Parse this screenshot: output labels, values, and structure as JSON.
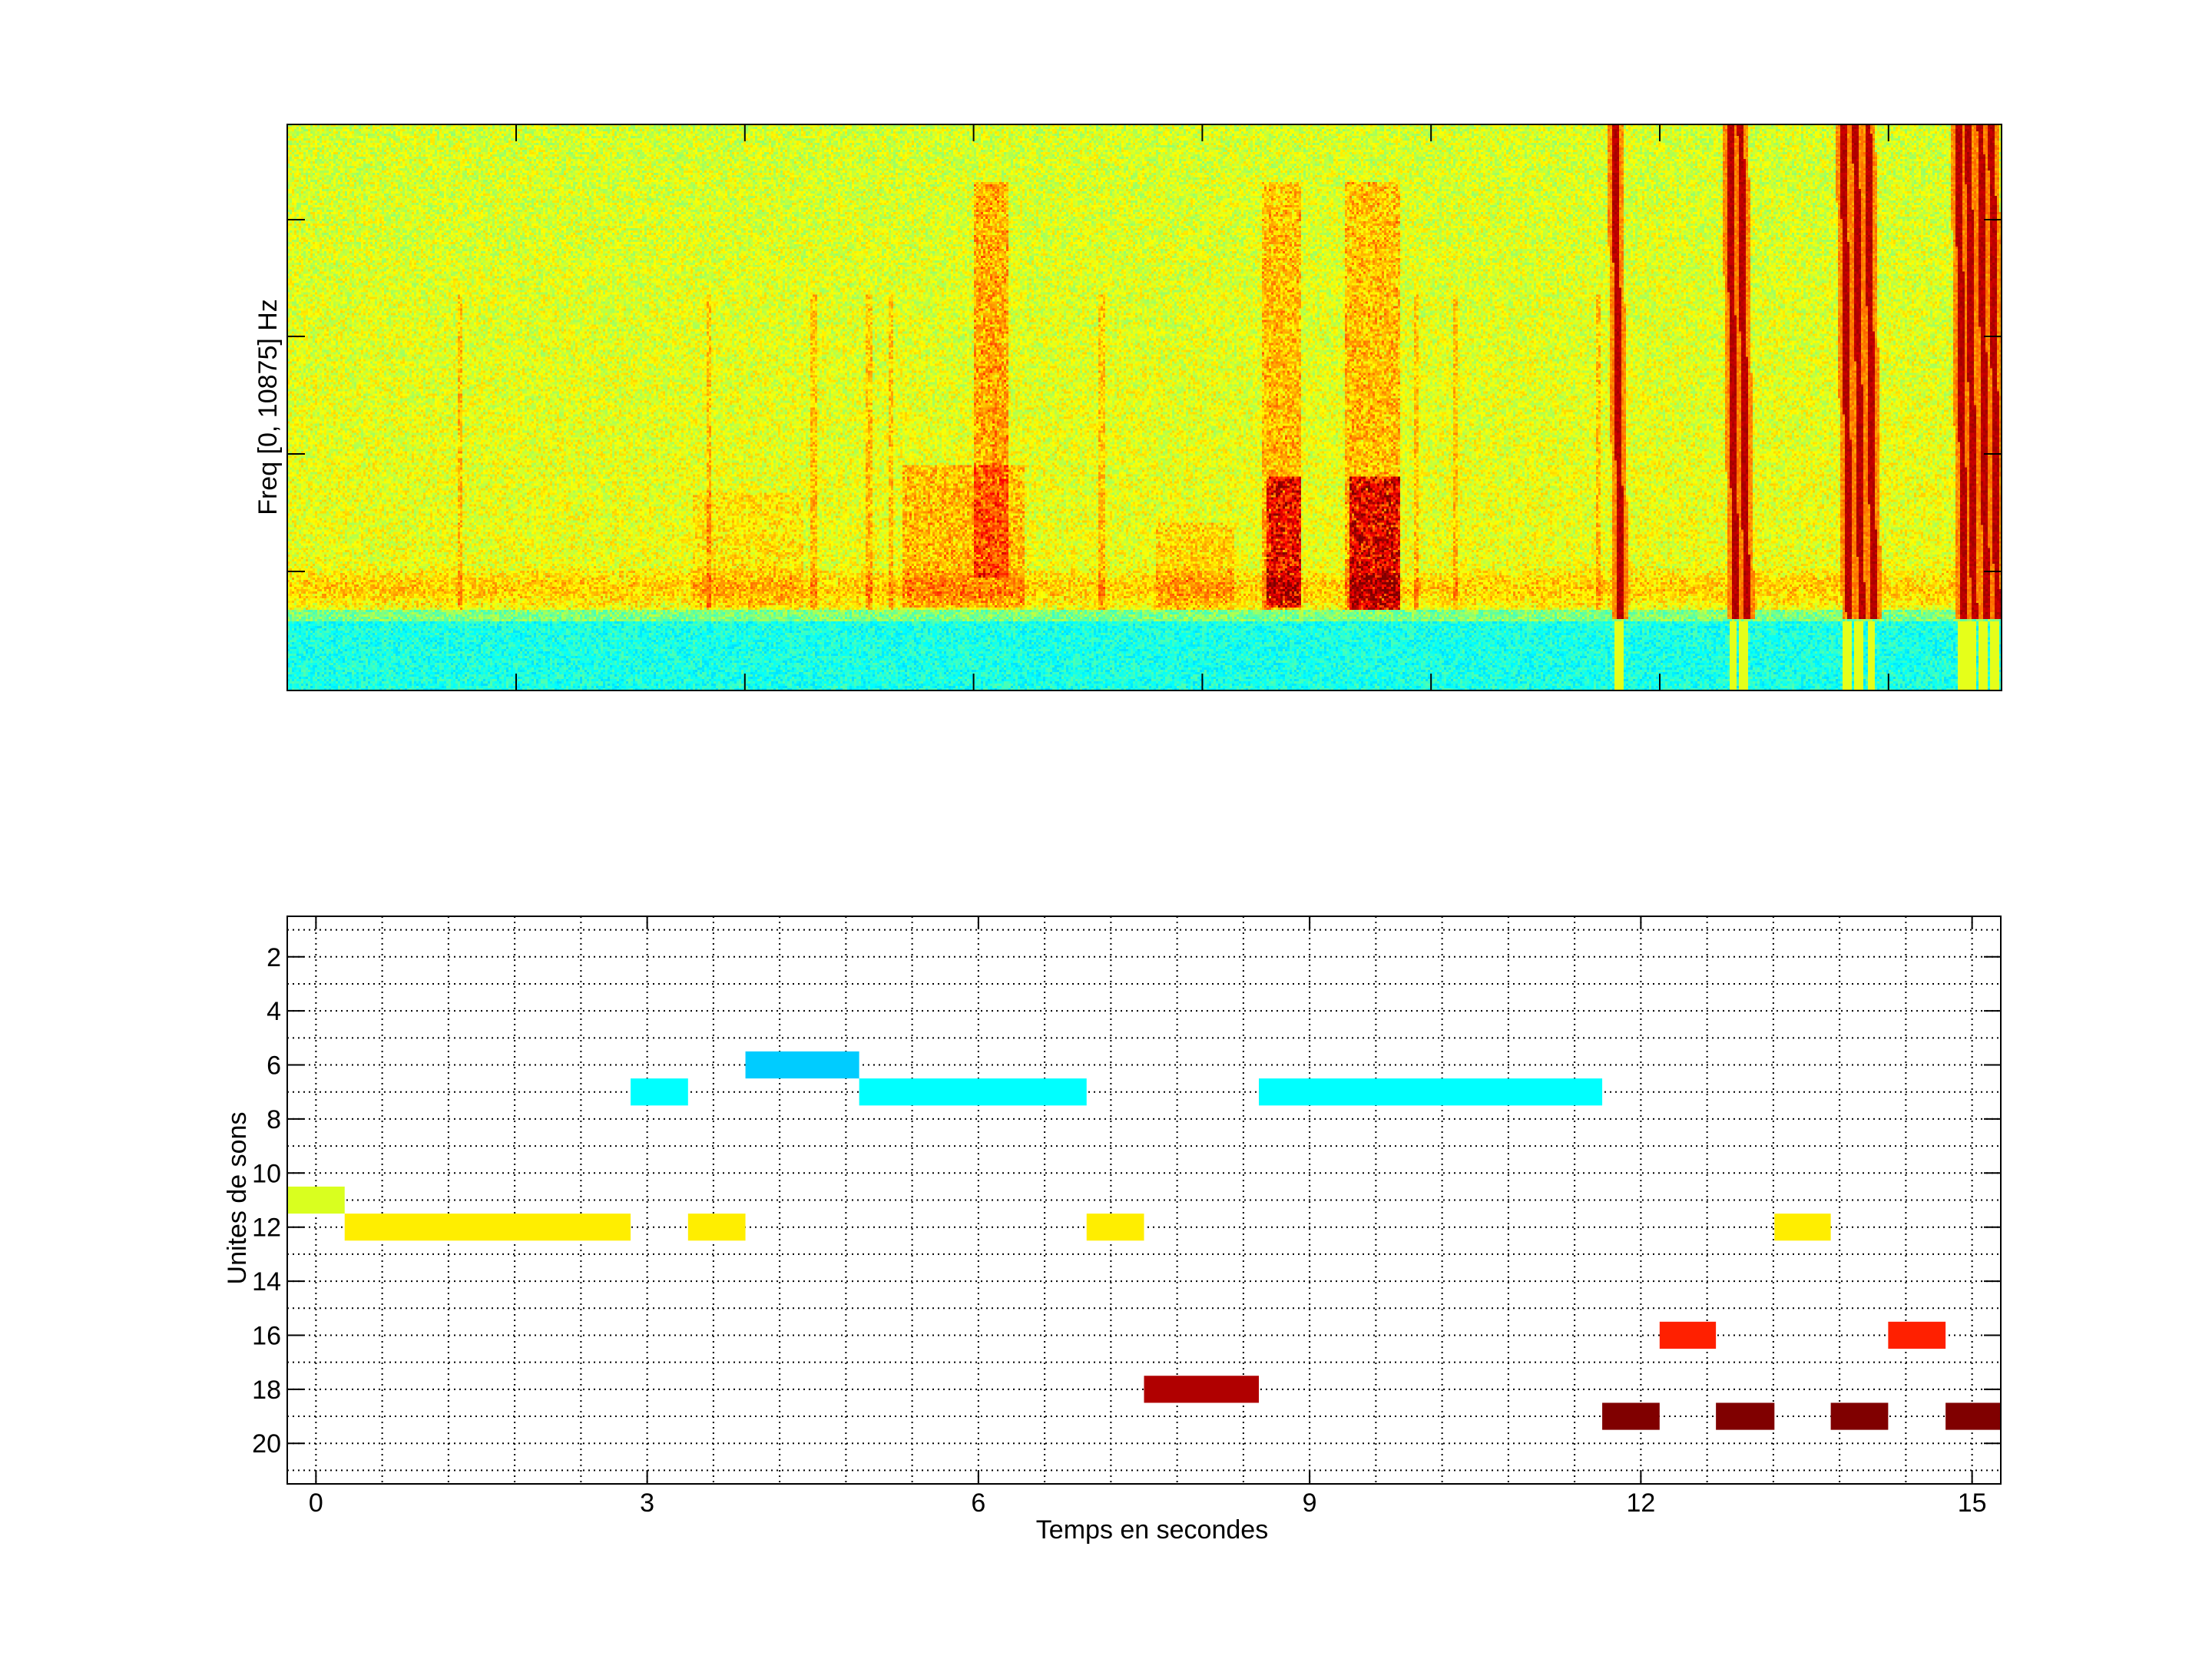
{
  "chart_data": [
    {
      "type": "heatmap",
      "title": "",
      "xlabel": "",
      "ylabel": "Freq [0, 10875] Hz",
      "colormap": "jet",
      "yrange_hz": [
        0,
        10875
      ],
      "xlim": [
        -0.26,
        15.26
      ],
      "tick_labels_shown": false
    },
    {
      "type": "bar",
      "subtype": "horizontal-segments",
      "title": "",
      "xlabel": "Temps en secondes",
      "ylabel": "Unites de sons",
      "xlim": [
        -0.26,
        15.26
      ],
      "ylim": [
        0.5,
        21.5
      ],
      "y_reversed": true,
      "grid": true,
      "xticks": [
        0,
        3,
        6,
        9,
        12,
        15
      ],
      "xtick_labels": [
        "0",
        "3",
        "6",
        "9",
        "12",
        "15"
      ],
      "yticks": [
        2,
        4,
        6,
        8,
        10,
        12,
        14,
        16,
        18,
        20
      ],
      "ytick_labels": [
        "2",
        "4",
        "6",
        "8",
        "10",
        "12",
        "14",
        "16",
        "18",
        "20"
      ],
      "segments": [
        {
          "unit": 11,
          "start": -0.26,
          "end": 0.26,
          "color": "#d9ff1f"
        },
        {
          "unit": 12,
          "start": 0.26,
          "end": 2.85,
          "color": "#ffee00"
        },
        {
          "unit": 7,
          "start": 2.85,
          "end": 3.37,
          "color": "#00ffff"
        },
        {
          "unit": 12,
          "start": 3.37,
          "end": 3.89,
          "color": "#ffee00"
        },
        {
          "unit": 6,
          "start": 3.89,
          "end": 4.92,
          "color": "#00ccff"
        },
        {
          "unit": 7,
          "start": 4.92,
          "end": 6.98,
          "color": "#00ffff"
        },
        {
          "unit": 12,
          "start": 6.98,
          "end": 7.5,
          "color": "#ffee00"
        },
        {
          "unit": 18,
          "start": 7.5,
          "end": 8.54,
          "color": "#b00000"
        },
        {
          "unit": 7,
          "start": 8.54,
          "end": 11.65,
          "color": "#00ffff"
        },
        {
          "unit": 19,
          "start": 11.65,
          "end": 12.17,
          "color": "#800000"
        },
        {
          "unit": 16,
          "start": 12.17,
          "end": 12.68,
          "color": "#ff2000"
        },
        {
          "unit": 19,
          "start": 12.68,
          "end": 13.21,
          "color": "#800000"
        },
        {
          "unit": 12,
          "start": 13.21,
          "end": 13.72,
          "color": "#ffee00"
        },
        {
          "unit": 19,
          "start": 13.72,
          "end": 14.24,
          "color": "#800000"
        },
        {
          "unit": 16,
          "start": 14.24,
          "end": 14.76,
          "color": "#ff2000"
        },
        {
          "unit": 19,
          "start": 14.76,
          "end": 15.26,
          "color": "#800000"
        }
      ]
    }
  ]
}
